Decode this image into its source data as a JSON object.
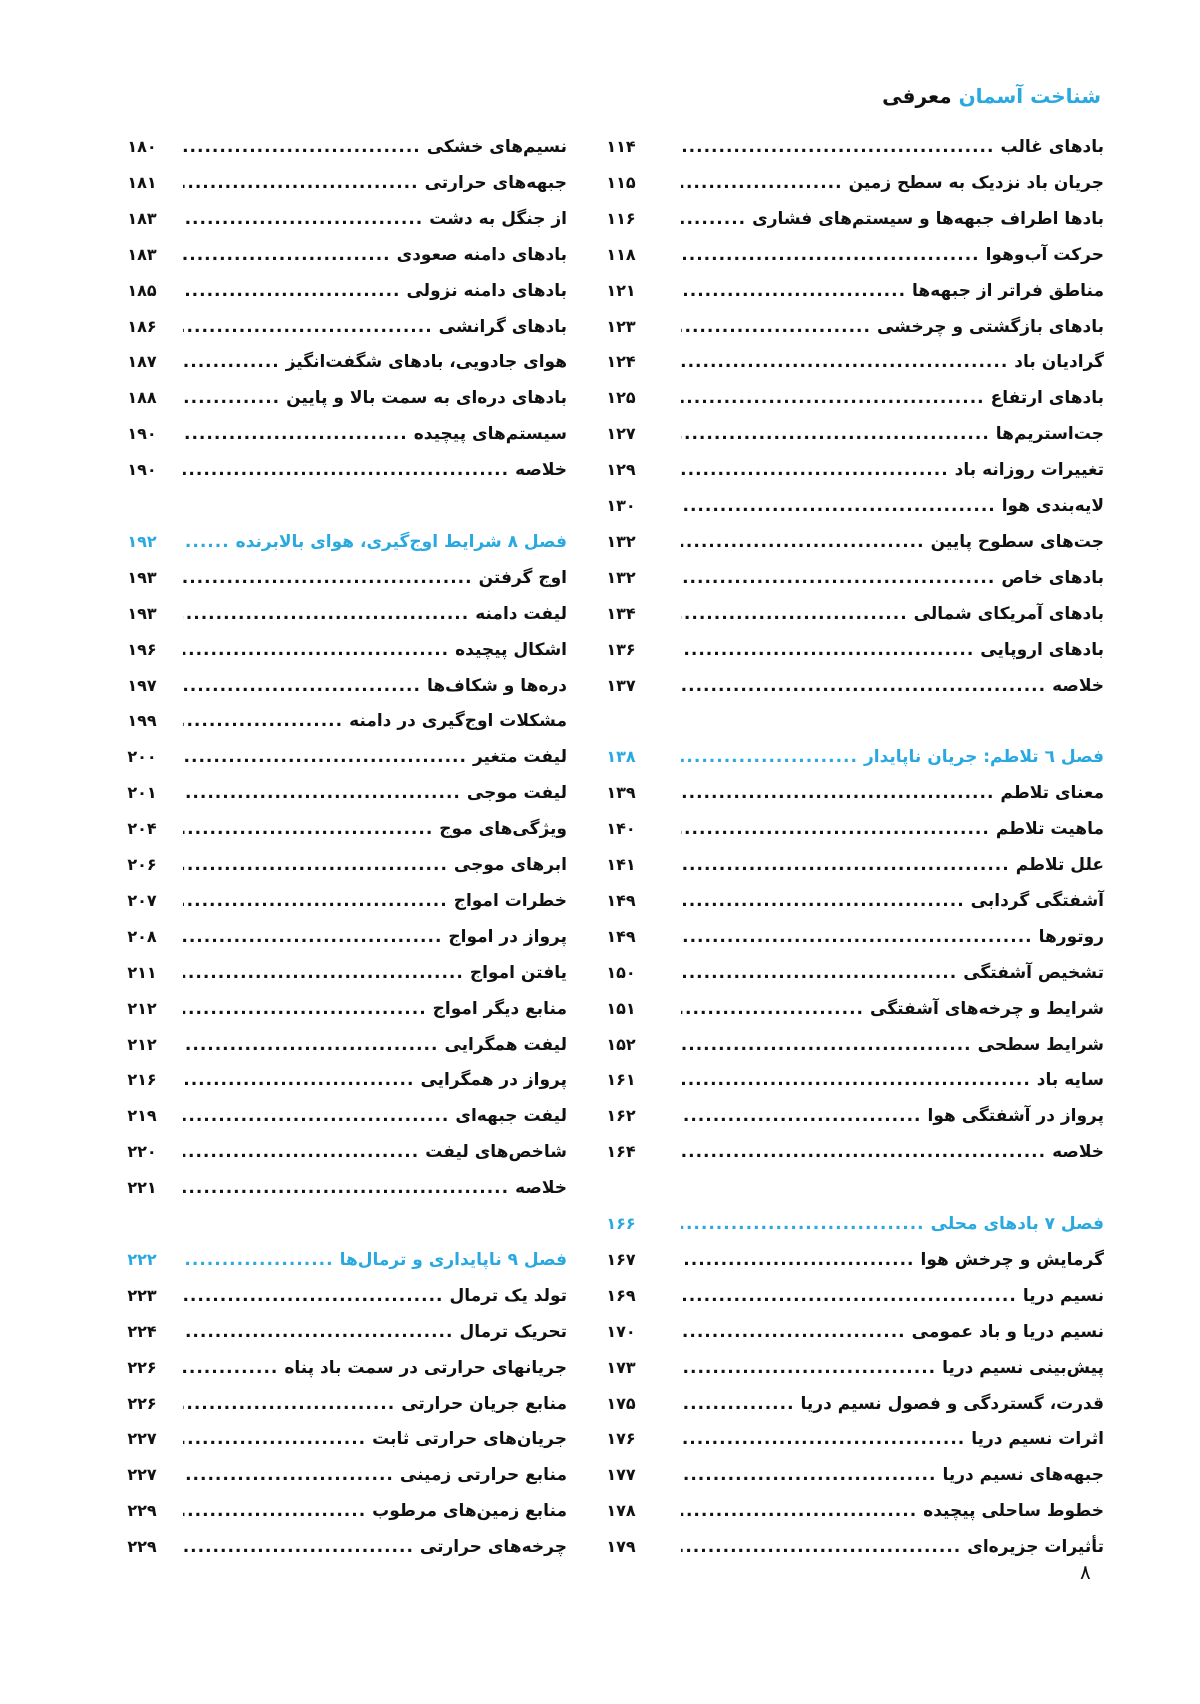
{
  "colors": {
    "accent": "#29a9e0",
    "text": "#111111"
  },
  "header": {
    "title_accent": "شناخت آسمان",
    "title_rest": "معرفی"
  },
  "page_number": "۸",
  "columns": [
    {
      "sections": [
        {
          "heading": null,
          "entries": [
            {
              "title": "بادهای غالب",
              "page": "۱۱۴"
            },
            {
              "title": "جریان باد نزدیک به سطح زمین",
              "page": "۱۱۵"
            },
            {
              "title": "بادها اطراف جبهه‌ها و سیستم‌های فشاری",
              "page": "۱۱۶"
            },
            {
              "title": "حرکت آب‌وهوا",
              "page": "۱۱۸"
            },
            {
              "title": "مناطق فراتر از جبهه‌ها",
              "page": "۱۲۱"
            },
            {
              "title": "بادهای بازگشتی و چرخشی",
              "page": "۱۲۳"
            },
            {
              "title": "گرادیان باد",
              "page": "۱۲۴"
            },
            {
              "title": "بادهای ارتفاع",
              "page": "۱۲۵"
            },
            {
              "title": "جت‌استریم‌ها",
              "page": "۱۲۷"
            },
            {
              "title": "تغییرات روزانه باد",
              "page": "۱۲۹"
            },
            {
              "title": "لایه‌بندی هوا",
              "page": "۱۳۰"
            },
            {
              "title": "جت‌های سطوح پایین",
              "page": "۱۳۲"
            },
            {
              "title": "بادهای خاص",
              "page": "۱۳۲"
            },
            {
              "title": "بادهای آمریکای شمالی",
              "page": "۱۳۴"
            },
            {
              "title": "بادهای اروپایی",
              "page": "۱۳۶"
            },
            {
              "title": "خلاصه",
              "page": "۱۳۷"
            }
          ]
        },
        {
          "heading": {
            "title": "فصل ٦ تلاطم: جریان ناپایدار",
            "page": "۱۳۸"
          },
          "entries": [
            {
              "title": "معنای تلاطم",
              "page": "۱۳۹"
            },
            {
              "title": "ماهیت تلاطم",
              "page": "۱۴۰"
            },
            {
              "title": "علل تلاطم",
              "page": "۱۴۱"
            },
            {
              "title": "آشفتگی گردابی",
              "page": "۱۴۹"
            },
            {
              "title": "روتورها",
              "page": "۱۴۹"
            },
            {
              "title": "تشخیص آشفتگی",
              "page": "۱۵۰"
            },
            {
              "title": "شرایط و چرخه‌های آشفتگی",
              "page": "۱۵۱"
            },
            {
              "title": "شرایط سطحی",
              "page": "۱۵۲"
            },
            {
              "title": "سایه باد",
              "page": "۱۶۱"
            },
            {
              "title": "پرواز در آشفتگی هوا",
              "page": "۱۶۲"
            },
            {
              "title": "خلاصه",
              "page": "۱۶۴"
            }
          ]
        },
        {
          "heading": {
            "title": "فصل ۷ بادهای محلی",
            "page": "۱۶۶"
          },
          "entries": [
            {
              "title": "گرمایش و چرخش هوا",
              "page": "۱۶۷"
            },
            {
              "title": "نسیم دریا",
              "page": "۱۶۹"
            },
            {
              "title": "نسیم دریا و باد عمومی",
              "page": "۱۷۰"
            },
            {
              "title": "پیش‌بینی نسیم دریا",
              "page": "۱۷۳"
            },
            {
              "title": "قدرت، گستردگی و فصول نسیم دریا",
              "page": "۱۷۵"
            },
            {
              "title": "اثرات نسیم دریا",
              "page": "۱۷۶"
            },
            {
              "title": "جبهه‌های نسیم دریا",
              "page": "۱۷۷"
            },
            {
              "title": "خطوط ساحلی پیچیده",
              "page": "۱۷۸"
            },
            {
              "title": "تأثیرات جزیره‌ای",
              "page": "۱۷۹"
            }
          ]
        }
      ]
    },
    {
      "sections": [
        {
          "heading": null,
          "entries": [
            {
              "title": "نسیم‌های خشکی",
              "page": "۱۸۰"
            },
            {
              "title": "جبهه‌های حرارتی",
              "page": "۱۸۱"
            },
            {
              "title": "از جنگل به دشت",
              "page": "۱۸۳"
            },
            {
              "title": "بادهای دامنه صعودی",
              "page": "۱۸۳"
            },
            {
              "title": "بادهای دامنه نزولی",
              "page": "۱۸۵"
            },
            {
              "title": "بادهای گرانشی",
              "page": "۱۸۶"
            },
            {
              "title": "هوای جادویی، بادهای شگفت‌انگیز",
              "page": "۱۸۷"
            },
            {
              "title": "بادهای دره‌ای به سمت بالا و پایین",
              "page": "۱۸۸"
            },
            {
              "title": "سیستم‌های پیچیده",
              "page": "۱۹۰"
            },
            {
              "title": "خلاصه",
              "page": "۱۹۰"
            }
          ]
        },
        {
          "heading": {
            "title": "فصل ۸ شرایط اوج‌گیری، هوای بالابرنده",
            "page": "۱۹۲"
          },
          "entries": [
            {
              "title": "اوج گرفتن",
              "page": "۱۹۳"
            },
            {
              "title": "لیفت دامنه",
              "page": "۱۹۳"
            },
            {
              "title": "اشکال پیچیده",
              "page": "۱۹۶"
            },
            {
              "title": "دره‌ها و شکاف‌ها",
              "page": "۱۹۷"
            },
            {
              "title": "مشکلات اوج‌گیری در دامنه",
              "page": "۱۹۹"
            },
            {
              "title": "لیفت متغیر",
              "page": "۲۰۰"
            },
            {
              "title": "لیفت موجی",
              "page": "۲۰۱"
            },
            {
              "title": "ویژگی‌های موج",
              "page": "۲۰۴"
            },
            {
              "title": "ابرهای موجی",
              "page": "۲۰۶"
            },
            {
              "title": "خطرات امواج",
              "page": "۲۰۷"
            },
            {
              "title": "پرواز در امواج",
              "page": "۲۰۸"
            },
            {
              "title": "یافتن امواج",
              "page": "۲۱۱"
            },
            {
              "title": "منابع دیگر امواج",
              "page": "۲۱۲"
            },
            {
              "title": "لیفت همگرایی",
              "page": "۲۱۲"
            },
            {
              "title": "پرواز در همگرایی",
              "page": "۲۱۶"
            },
            {
              "title": "لیفت جبهه‌ای",
              "page": "۲۱۹"
            },
            {
              "title": "شاخص‌های لیفت",
              "page": "۲۲۰"
            },
            {
              "title": "خلاصه",
              "page": "۲۲۱"
            }
          ]
        },
        {
          "heading": {
            "title": "فصل ۹ ناپایداری و ترمال‌ها",
            "page": "۲۲۲"
          },
          "entries": [
            {
              "title": "تولد یک ترمال",
              "page": "۲۲۳"
            },
            {
              "title": "تحریک ترمال",
              "page": "۲۲۴"
            },
            {
              "title": "جریانهای حرارتی در سمت باد پناه",
              "page": "۲۲۶"
            },
            {
              "title": "منابع جریان حرارتی",
              "page": "۲۲۶"
            },
            {
              "title": "جریان‌های حرارتی ثابت",
              "page": "۲۲۷"
            },
            {
              "title": "منابع حرارتی زمینی",
              "page": "۲۲۷"
            },
            {
              "title": "منابع زمین‌های مرطوب",
              "page": "۲۲۹"
            },
            {
              "title": "چرخه‌های حرارتی",
              "page": "۲۲۹"
            }
          ]
        }
      ]
    }
  ]
}
